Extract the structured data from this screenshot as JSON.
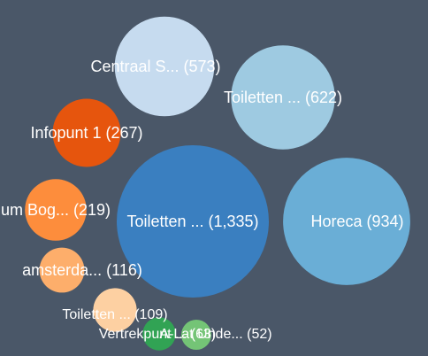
{
  "chart_data": {
    "type": "bubble",
    "title": "",
    "legend": "none",
    "label_color": "#ffffff",
    "background": "#4a5768",
    "bubbles": [
      {
        "name": "Toiletten ...",
        "value": 1335,
        "label": "Toiletten ... (1,335)",
        "color": "#3a7fc0"
      },
      {
        "name": "Horeca",
        "value": 934,
        "label": "Horeca (934)",
        "color": "#6aaed6"
      },
      {
        "name": "Toiletten ...",
        "value": 622,
        "label": "Toiletten ... (622)",
        "color": "#9ecae1"
      },
      {
        "name": "Centraal S...",
        "value": 573,
        "label": "Centraal S... (573)",
        "color": "#c6dbef"
      },
      {
        "name": "Infopunt 1",
        "value": 267,
        "label": "Infopunt 1 (267)",
        "color": "#e6550d"
      },
      {
        "name": "...um Bog...",
        "value": 219,
        "label": "um Bog... (219)",
        "color": "#fd8d3c"
      },
      {
        "name": "amsterda...",
        "value": 116,
        "label": "amsterda... (116)",
        "color": "#fdae6b"
      },
      {
        "name": "Toiletten ...",
        "value": 109,
        "label": "Toiletten ... (109)",
        "color": "#fdd0a2"
      },
      {
        "name": "Vertrekpunt ...",
        "value": 63,
        "label": "Vertrekpunt ... (63)",
        "color": "#31a354"
      },
      {
        "name": "A-Lat Unde...",
        "value": 52,
        "label": "A-Lat Unde... (52)",
        "color": "#74c476"
      }
    ]
  }
}
